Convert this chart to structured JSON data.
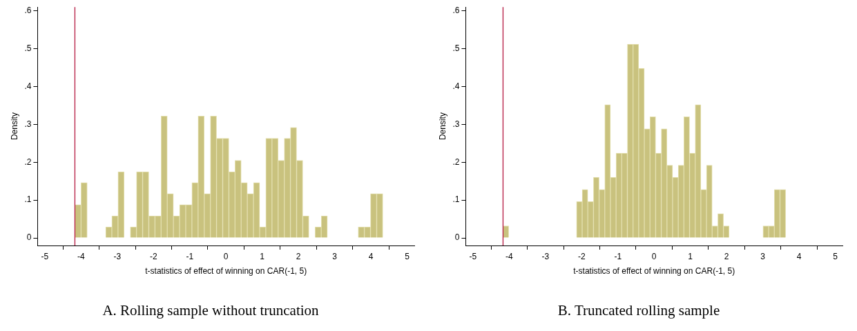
{
  "chart_data": [
    {
      "type": "histogram",
      "title": "A. Rolling sample without truncation",
      "xlabel": "t-statistics of effect of winning on CAR(-1, 5)",
      "ylabel": "Density",
      "color": "#c9c27e",
      "grid": false,
      "legend": false,
      "bins": [
        -4.17,
        -4.0,
        -3.83,
        -3.66,
        -3.49,
        -3.32,
        -3.15,
        -2.98,
        -2.81,
        -2.64,
        -2.47,
        -2.3,
        -2.13,
        -1.96,
        -1.79,
        -1.62,
        -1.45,
        -1.28,
        -1.11,
        -0.94,
        -0.77,
        -0.6,
        -0.43,
        -0.26,
        -0.09,
        0.08,
        0.25,
        0.42,
        0.59,
        0.76,
        0.93,
        1.1,
        1.27,
        1.44,
        1.61,
        1.78,
        1.95,
        2.12,
        2.29,
        2.46,
        2.63,
        2.8,
        2.97,
        3.14,
        3.31,
        3.48,
        3.65,
        3.82,
        3.99,
        4.16,
        4.33
      ],
      "values": [
        0.088,
        0.146,
        0,
        0,
        0,
        0.029,
        0.058,
        0.175,
        0,
        0.029,
        0.175,
        0.175,
        0.058,
        0.058,
        0.322,
        0.117,
        0.058,
        0.088,
        0.088,
        0.146,
        0.322,
        0.117,
        0.322,
        0.263,
        0.263,
        0.175,
        0.205,
        0.146,
        0.117,
        0.146,
        0.029,
        0.263,
        0.263,
        0.205,
        0.263,
        0.292,
        0.205,
        0.058,
        0,
        0.029,
        0.058,
        0,
        0,
        0,
        0,
        0,
        0.029,
        0.029,
        0.117,
        0.117
      ],
      "xlim": [
        -5.2,
        5.2
      ],
      "xticks": [
        -5,
        -4,
        -3,
        -2,
        -1,
        0,
        1,
        2,
        3,
        4,
        5
      ],
      "ylim": [
        -0.02,
        0.61
      ],
      "yticks": [
        0,
        {
          "value": 0.1,
          "label": ".1"
        },
        {
          "value": 0.2,
          "label": ".2"
        },
        {
          "value": 0.3,
          "label": ".3"
        },
        {
          "value": 0.4,
          "label": ".4"
        },
        {
          "value": 0.5,
          "label": ".5"
        },
        {
          "value": 0.6,
          "label": ".6"
        }
      ],
      "ref_lines": [
        {
          "axis": "x",
          "value": -4.17,
          "color": "#b5173f"
        }
      ]
    },
    {
      "type": "histogram",
      "title": "B. Truncated rolling sample",
      "xlabel": "t-statistics of effect of winning on CAR(-1, 5)",
      "ylabel": "Density",
      "color": "#c9c27e",
      "grid": false,
      "legend": false,
      "bins": [
        -4.17,
        -4.014,
        -3.858,
        -3.702,
        -3.546,
        -3.39,
        -3.234,
        -3.078,
        -2.922,
        -2.766,
        -2.61,
        -2.454,
        -2.298,
        -2.142,
        -1.986,
        -1.83,
        -1.674,
        -1.518,
        -1.362,
        -1.206,
        -1.05,
        -0.894,
        -0.738,
        -0.582,
        -0.426,
        -0.27,
        -0.114,
        0.042,
        0.198,
        0.354,
        0.51,
        0.666,
        0.822,
        0.978,
        1.134,
        1.29,
        1.446,
        1.602,
        1.758,
        1.914,
        2.07,
        2.226,
        2.382,
        2.538,
        2.694,
        2.85,
        3.006,
        3.162,
        3.318,
        3.474,
        3.63
      ],
      "values": [
        0.032,
        0,
        0,
        0,
        0,
        0,
        0,
        0,
        0,
        0,
        0,
        0,
        0,
        0.096,
        0.128,
        0.096,
        0.16,
        0.128,
        0.352,
        0.16,
        0.224,
        0.224,
        0.512,
        0.512,
        0.448,
        0.288,
        0.32,
        0.224,
        0.288,
        0.192,
        0.16,
        0.192,
        0.32,
        0.224,
        0.352,
        0.128,
        0.192,
        0.032,
        0.064,
        0.032,
        0,
        0,
        0,
        0,
        0,
        0,
        0.032,
        0.032,
        0.128,
        0.128
      ],
      "xlim": [
        -5.2,
        5.2
      ],
      "xticks": [
        -5,
        -4,
        -3,
        -2,
        -1,
        0,
        1,
        2,
        3,
        4,
        5
      ],
      "ylim": [
        -0.02,
        0.61
      ],
      "yticks": [
        0,
        {
          "value": 0.1,
          "label": ".1"
        },
        {
          "value": 0.2,
          "label": ".2"
        },
        {
          "value": 0.3,
          "label": ".3"
        },
        {
          "value": 0.4,
          "label": ".4"
        },
        {
          "value": 0.5,
          "label": ".5"
        },
        {
          "value": 0.6,
          "label": ".6"
        }
      ],
      "ref_lines": [
        {
          "axis": "x",
          "value": -4.17,
          "color": "#b5173f"
        }
      ]
    }
  ]
}
